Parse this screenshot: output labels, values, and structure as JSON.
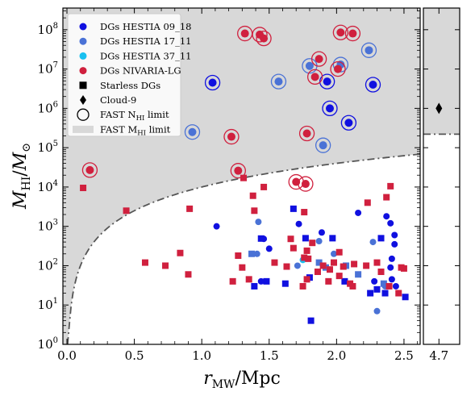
{
  "chart_data": {
    "type": "scatter",
    "xlabel": "r_MW/Mpc",
    "xlabel_parts": {
      "main": "r",
      "sub": "MW",
      "unit": "/Mpc"
    },
    "ylabel": "M_HI/M_⊙",
    "ylabel_parts": {
      "main": "M",
      "sub": "HI",
      "slash": "/",
      "main2": "M",
      "sub2": "⊙"
    },
    "xlim": [
      -0.03,
      2.62
    ],
    "ylim_log10": [
      0,
      8.55
    ],
    "yscale": "log",
    "xticks": [
      0.0,
      0.5,
      1.0,
      1.5,
      2.0,
      2.5
    ],
    "xtick_labels": [
      "0.0",
      "0.5",
      "1.0",
      "1.5",
      "2.0",
      "2.5"
    ],
    "yticks_exponents": [
      0,
      1,
      2,
      3,
      4,
      5,
      6,
      7,
      8
    ],
    "ytick_base": "10",
    "inset_axis": {
      "xlim": [
        4.55,
        4.9
      ],
      "xtick": 4.7,
      "xtick_label": "4.7"
    },
    "limit_curve": {
      "name": "FAST M_HI limit",
      "coefficient": 10000,
      "exponent": 2,
      "color": "#d8d8d8"
    },
    "legend": {
      "position": "top-left",
      "entries": [
        {
          "label": "DGs HESTIA 09_18",
          "marker": "circle",
          "color": "#1010e0"
        },
        {
          "label": "DGs HESTIA 17_11",
          "marker": "circle",
          "color": "#4a72d6"
        },
        {
          "label": "DGs HESTIA 37_11",
          "marker": "circle",
          "color": "#18c0f0"
        },
        {
          "label": "DGs NIVARIA-LG",
          "marker": "circle",
          "color": "#d0203e"
        },
        {
          "label": "Starless DGs",
          "marker": "square",
          "color": "#000000"
        },
        {
          "label": "Cloud-9",
          "marker": "diamond",
          "color": "#000000"
        },
        {
          "label": "FAST N",
          "label_sub": "HI",
          "label_tail": " limit",
          "marker": "open-circle",
          "color": "#000000"
        },
        {
          "label": "FAST M",
          "label_sub": "HI",
          "label_tail": " limit",
          "marker": "gray-patch",
          "color": "#d8d8d8"
        }
      ]
    },
    "series": [
      {
        "name": "DGs HESTIA 09_18",
        "color": "#1010e0",
        "circles": [
          [
            1.08,
            4500000.0
          ],
          [
            1.93,
            4800000.0
          ],
          [
            1.95,
            1000000.0
          ],
          [
            2.09,
            430000.0
          ],
          [
            2.27,
            4000000.0
          ]
        ],
        "dots": [
          [
            1.11,
            1000
          ],
          [
            1.46,
            480
          ],
          [
            1.5,
            270
          ],
          [
            1.72,
            1150
          ],
          [
            1.89,
            700
          ],
          [
            2.16,
            2200
          ],
          [
            2.37,
            1800
          ],
          [
            2.4,
            1200
          ],
          [
            2.43,
            600
          ],
          [
            2.43,
            350
          ],
          [
            2.41,
            150
          ],
          [
            2.4,
            90
          ],
          [
            2.41,
            45
          ],
          [
            2.44,
            30
          ],
          [
            2.28,
            40
          ],
          [
            1.44,
            40
          ]
        ],
        "squares": [
          [
            1.68,
            2800
          ],
          [
            1.44,
            490
          ],
          [
            1.77,
            500
          ],
          [
            1.97,
            500
          ],
          [
            2.33,
            500
          ],
          [
            1.48,
            40
          ],
          [
            1.62,
            35
          ],
          [
            1.8,
            50
          ],
          [
            2.06,
            40
          ],
          [
            2.25,
            20
          ],
          [
            2.3,
            25
          ],
          [
            2.36,
            20
          ],
          [
            2.51,
            16
          ],
          [
            1.39,
            30
          ],
          [
            1.81,
            4
          ]
        ]
      },
      {
        "name": "DGs HESTIA 17_11",
        "color": "#4a72d6",
        "circles": [
          [
            0.93,
            250000.0
          ],
          [
            1.57,
            4800000.0
          ],
          [
            1.8,
            12000000.0
          ],
          [
            2.03,
            13000000.0
          ],
          [
            2.24,
            30000000.0
          ],
          [
            1.9,
            115000.0
          ]
        ],
        "dots": [
          [
            1.42,
            1300
          ],
          [
            1.87,
            420
          ],
          [
            2.27,
            400
          ],
          [
            2.3,
            7
          ],
          [
            2.36,
            30
          ],
          [
            1.71,
            100
          ],
          [
            1.41,
            200
          ],
          [
            1.98,
            200
          ]
        ],
        "squares": [
          [
            1.37,
            200
          ],
          [
            1.87,
            120
          ],
          [
            2.07,
            100
          ],
          [
            2.16,
            60
          ],
          [
            2.35,
            35
          ],
          [
            1.92,
            90
          ]
        ]
      },
      {
        "name": "DGs HESTIA 37_11",
        "color": "#18c0f0",
        "circles": [],
        "dots": [
          [
            1.75,
            140
          ]
        ],
        "squares": []
      },
      {
        "name": "DGs NIVARIA-LG",
        "color": "#d0203e",
        "circles": [
          [
            0.17,
            27000.0
          ],
          [
            1.22,
            190000.0
          ],
          [
            1.27,
            26000.0
          ],
          [
            1.32,
            80000000.0
          ],
          [
            1.43,
            75000000.0
          ],
          [
            1.46,
            60000000.0
          ],
          [
            1.7,
            13500.0
          ],
          [
            1.77,
            12000.0
          ],
          [
            1.78,
            230000.0
          ],
          [
            1.84,
            6300000.0
          ],
          [
            1.87,
            18000000.0
          ],
          [
            2.01,
            10000000.0
          ],
          [
            2.03,
            85000000.0
          ],
          [
            2.12,
            80000000.0
          ]
        ],
        "dots": [],
        "squares": [
          [
            0.12,
            9500
          ],
          [
            0.44,
            2500
          ],
          [
            0.91,
            2800
          ],
          [
            1.31,
            17000
          ],
          [
            1.38,
            6000
          ],
          [
            1.39,
            2500
          ],
          [
            1.46,
            10000
          ],
          [
            1.76,
            2300
          ],
          [
            2.37,
            5500
          ],
          [
            2.4,
            10500
          ],
          [
            2.23,
            4000
          ],
          [
            1.66,
            480
          ],
          [
            1.82,
            380
          ],
          [
            2.02,
            220
          ],
          [
            0.58,
            120
          ],
          [
            0.73,
            100
          ],
          [
            0.84,
            210
          ],
          [
            0.9,
            60
          ],
          [
            1.23,
            40
          ],
          [
            1.27,
            180
          ],
          [
            1.3,
            90
          ],
          [
            1.35,
            45
          ],
          [
            1.54,
            120
          ],
          [
            1.63,
            95
          ],
          [
            1.68,
            280
          ],
          [
            1.76,
            160
          ],
          [
            1.78,
            240
          ],
          [
            1.79,
            150
          ],
          [
            1.86,
            70
          ],
          [
            1.9,
            100
          ],
          [
            1.95,
            80
          ],
          [
            1.98,
            120
          ],
          [
            2.02,
            55
          ],
          [
            2.05,
            95
          ],
          [
            2.1,
            35
          ],
          [
            2.13,
            110
          ],
          [
            2.22,
            100
          ],
          [
            2.3,
            120
          ],
          [
            2.33,
            70
          ],
          [
            2.48,
            90
          ],
          [
            2.5,
            85
          ],
          [
            1.75,
            30
          ],
          [
            1.78,
            45
          ],
          [
            1.94,
            40
          ],
          [
            2.46,
            20
          ],
          [
            2.39,
            30
          ],
          [
            2.12,
            30
          ]
        ]
      }
    ],
    "cloud9": {
      "x": 4.7,
      "y": 1000000.0,
      "color": "#000000"
    }
  }
}
